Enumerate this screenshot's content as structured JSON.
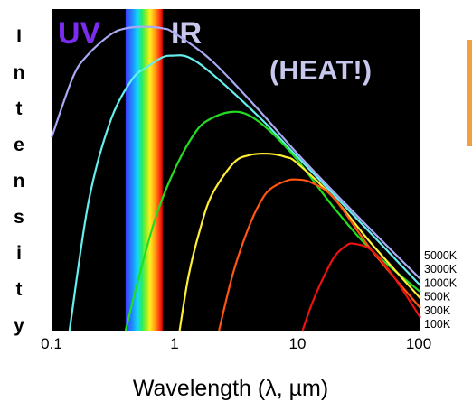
{
  "chart_data": {
    "type": "line",
    "xscale": "log",
    "xlim": [
      0.1,
      100
    ],
    "xticks": [
      "0.1",
      "1",
      "10",
      "100"
    ],
    "xlabel": "Wavelength (λ, µm)",
    "ylabel": "Intensity",
    "background": "#000000",
    "legend_placement": "right",
    "annotations": {
      "uv": {
        "text": "UV",
        "color": "#7b2cf0"
      },
      "ir": {
        "text": "IR",
        "color": "#c8c8ee"
      },
      "heat": {
        "text": "(HEAT!)",
        "color": "#c8c8ee"
      }
    },
    "visible_band_um": [
      0.4,
      0.8
    ],
    "series": [
      {
        "name": "5000K",
        "color": "#aaaaf2",
        "x": [
          0.1,
          0.15,
          0.2,
          0.3,
          0.4,
          0.58,
          0.8,
          1,
          2,
          5,
          10,
          30,
          100
        ],
        "y": [
          0.6,
          0.79,
          0.86,
          0.92,
          0.94,
          0.945,
          0.94,
          0.925,
          0.84,
          0.68,
          0.55,
          0.36,
          0.16
        ]
      },
      {
        "name": "3000K",
        "color": "#66eeee",
        "x": [
          0.14,
          0.2,
          0.3,
          0.45,
          0.6,
          0.8,
          0.97,
          1.3,
          2,
          5,
          10,
          30,
          100
        ],
        "y": [
          0.0,
          0.4,
          0.65,
          0.78,
          0.82,
          0.85,
          0.855,
          0.85,
          0.8,
          0.66,
          0.54,
          0.35,
          0.14
        ]
      },
      {
        "name": "1000K",
        "color": "#22dd22",
        "x": [
          0.4,
          0.5,
          0.7,
          1,
          1.5,
          2,
          2.9,
          4,
          6,
          10,
          20,
          40,
          100
        ],
        "y": [
          0.0,
          0.15,
          0.35,
          0.5,
          0.62,
          0.66,
          0.68,
          0.67,
          0.62,
          0.53,
          0.38,
          0.25,
          0.12
        ]
      },
      {
        "name": "500K",
        "color": "#ffee33",
        "x": [
          1.1,
          1.3,
          1.6,
          2,
          3,
          4,
          5.8,
          8,
          10,
          20,
          40,
          100
        ],
        "y": [
          0.0,
          0.17,
          0.31,
          0.42,
          0.52,
          0.545,
          0.55,
          0.54,
          0.52,
          0.41,
          0.27,
          0.1
        ]
      },
      {
        "name": "300K",
        "color": "#ff5511",
        "x": [
          2.3,
          3,
          4,
          5,
          6,
          8,
          9.7,
          13,
          20,
          40,
          100
        ],
        "y": [
          0.0,
          0.18,
          0.32,
          0.4,
          0.44,
          0.465,
          0.47,
          0.46,
          0.41,
          0.25,
          0.07
        ]
      },
      {
        "name": "100K",
        "color": "#ee1111",
        "x": [
          11,
          13,
          16,
          20,
          25,
          29,
          40,
          60,
          100
        ],
        "y": [
          0.0,
          0.08,
          0.16,
          0.23,
          0.265,
          0.27,
          0.25,
          0.17,
          0.04
        ]
      }
    ]
  }
}
